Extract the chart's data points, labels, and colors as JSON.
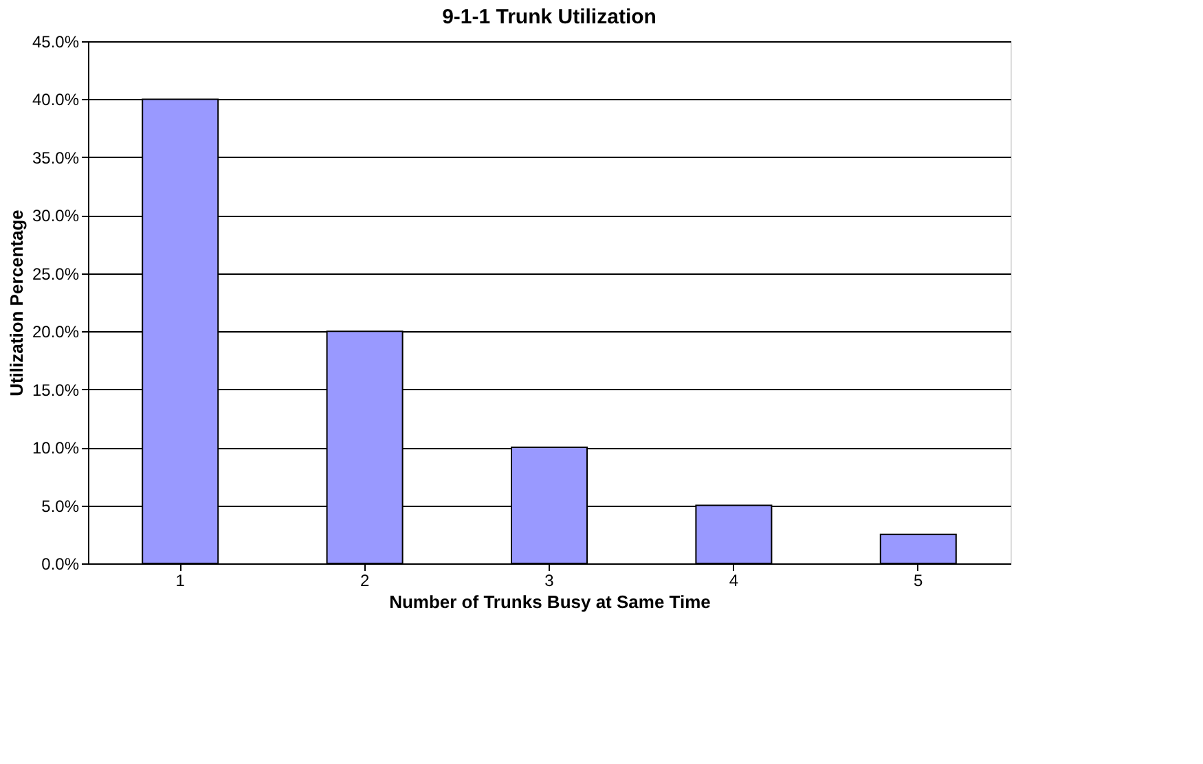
{
  "chart_data": {
    "type": "bar",
    "title": "9-1-1 Trunk Utilization",
    "xlabel": "Number of Trunks Busy at Same Time",
    "ylabel": "Utilization Percentage",
    "categories": [
      "1",
      "2",
      "3",
      "4",
      "5"
    ],
    "values": [
      40,
      20,
      10,
      5,
      2.5
    ],
    "color": "#9999ff",
    "ylim": [
      0,
      45
    ],
    "yticks": [
      {
        "value": 0,
        "label": "0.0%"
      },
      {
        "value": 5,
        "label": "5.0%"
      },
      {
        "value": 10,
        "label": "10.0%"
      },
      {
        "value": 15,
        "label": "15.0%"
      },
      {
        "value": 20,
        "label": "20.0%"
      },
      {
        "value": 25,
        "label": "25.0%"
      },
      {
        "value": 30,
        "label": "30.0%"
      },
      {
        "value": 35,
        "label": "35.0%"
      },
      {
        "value": 40,
        "label": "40.0%"
      },
      {
        "value": 45,
        "label": "45.0%"
      }
    ],
    "grid": "y"
  }
}
